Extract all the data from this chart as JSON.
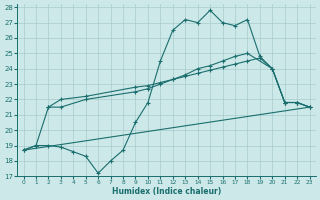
{
  "xlabel": "Humidex (Indice chaleur)",
  "xlim": [
    -0.5,
    23.5
  ],
  "ylim": [
    17,
    28.2
  ],
  "yticks": [
    17,
    18,
    19,
    20,
    21,
    22,
    23,
    24,
    25,
    26,
    27,
    28
  ],
  "xticks": [
    0,
    1,
    2,
    3,
    4,
    5,
    6,
    7,
    8,
    9,
    10,
    11,
    12,
    13,
    14,
    15,
    16,
    17,
    18,
    19,
    20,
    21,
    22,
    23
  ],
  "bg_color": "#cde8e8",
  "grid_color": "#a8cccc",
  "line_color": "#1a6e6e",
  "line1_x": [
    0,
    1,
    2,
    3,
    4,
    5,
    6,
    7,
    8,
    9,
    10,
    11,
    12,
    13,
    14,
    15,
    16,
    17,
    18,
    19,
    20,
    21,
    22,
    23
  ],
  "line1_y": [
    18.7,
    19.0,
    19.0,
    18.9,
    18.6,
    18.3,
    17.2,
    18.0,
    18.7,
    20.5,
    21.8,
    24.5,
    26.5,
    27.2,
    27.0,
    27.8,
    27.0,
    26.8,
    27.2,
    24.8,
    24.0,
    21.8,
    21.8,
    21.5
  ],
  "line2_x": [
    2,
    3,
    5,
    9,
    10,
    11,
    12,
    13,
    14,
    15,
    16,
    17,
    18,
    20,
    21,
    22,
    23
  ],
  "line2_y": [
    21.5,
    21.5,
    22.0,
    22.5,
    22.7,
    23.0,
    23.3,
    23.6,
    24.0,
    24.2,
    24.5,
    24.8,
    25.0,
    24.0,
    21.8,
    21.8,
    21.5
  ],
  "line3_x": [
    0,
    1,
    2,
    3,
    5,
    9,
    10,
    11,
    12,
    13,
    14,
    15,
    16,
    17,
    18,
    19,
    20,
    21,
    22,
    23
  ],
  "line3_y": [
    18.7,
    19.0,
    21.5,
    22.0,
    22.2,
    22.8,
    22.9,
    23.1,
    23.3,
    23.5,
    23.7,
    23.9,
    24.1,
    24.3,
    24.5,
    24.7,
    24.0,
    21.8,
    21.8,
    21.5
  ],
  "line4_x": [
    0,
    23
  ],
  "line4_y": [
    18.7,
    21.5
  ]
}
